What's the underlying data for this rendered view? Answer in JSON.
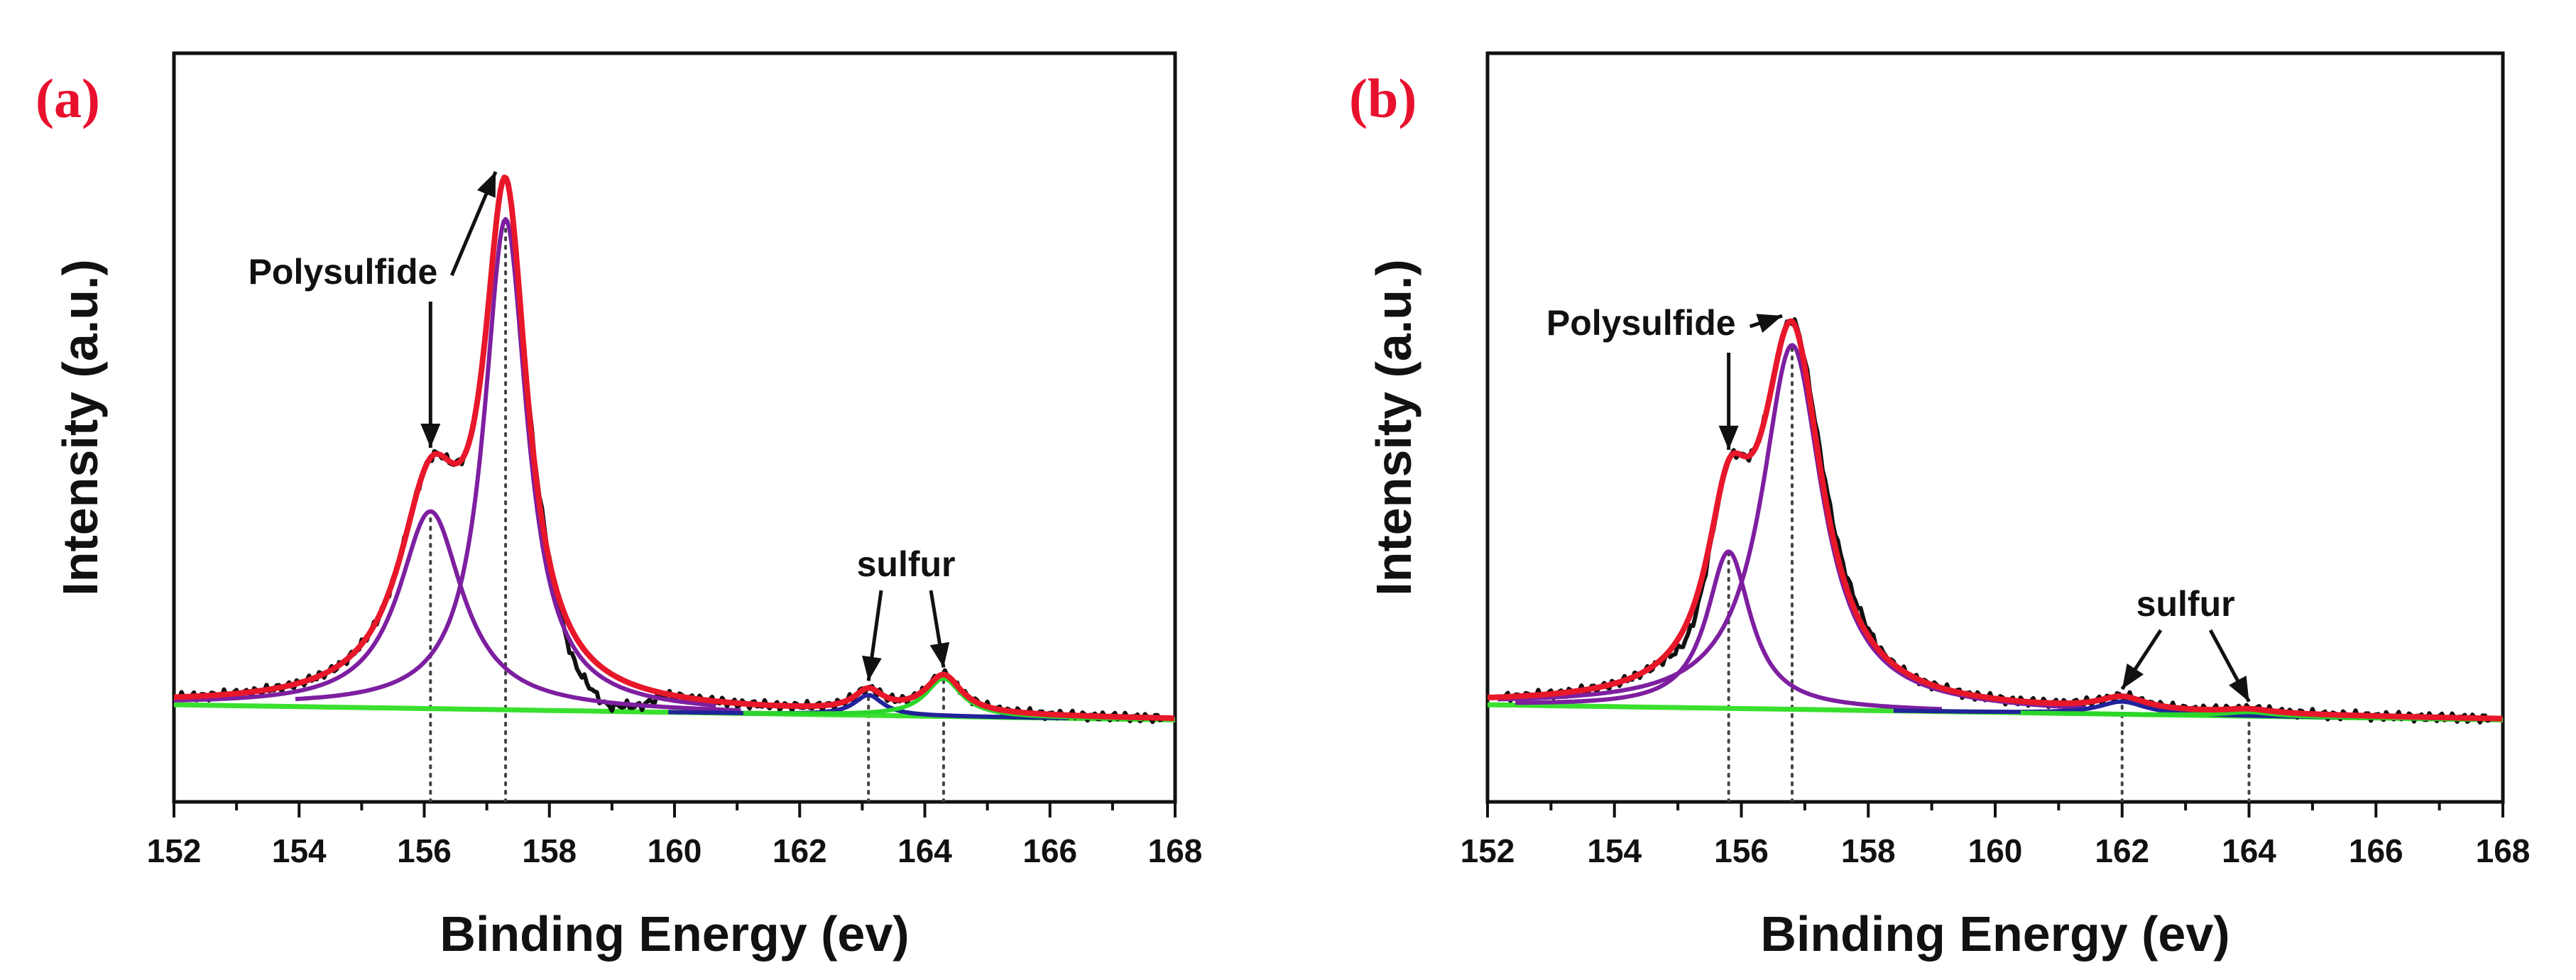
{
  "chart_data": [
    {
      "type": "line",
      "panel_label": "(a)",
      "xlabel": "Binding Energy (ev)",
      "ylabel": "Intensity (a.u.)",
      "xlim": [
        152,
        168
      ],
      "ylim": [
        -0.18,
        1.3
      ],
      "x_ticks": [
        152,
        154,
        156,
        158,
        160,
        162,
        164,
        166,
        168
      ],
      "y_ticks": [],
      "grid": false,
      "colors": {
        "panel_label": "#e8112d",
        "raw": "#111111",
        "fit": "#e8172a",
        "polysulfide": "#7d1fa0",
        "sulfur_a": "#22239a",
        "sulfur_b": "#2bd62b",
        "background": "#39e02e",
        "annotation": "#111111",
        "guide": "#444444"
      },
      "background_line": {
        "start": 0.012,
        "end": -0.018
      },
      "series": [
        {
          "name": "Polysulfide peak 1",
          "role": "polysulfide",
          "center": 156.1,
          "amplitude": 0.39,
          "width": 0.62
        },
        {
          "name": "Polysulfide peak 2",
          "role": "polysulfide",
          "center": 157.3,
          "amplitude": 0.97,
          "width": 0.42
        },
        {
          "name": "Sulfur peak 1",
          "role": "sulfur_a",
          "center": 163.1,
          "amplitude": 0.04,
          "width": 0.28
        },
        {
          "name": "Sulfur peak 2",
          "role": "sulfur_b",
          "center": 164.3,
          "amplitude": 0.075,
          "width": 0.35
        }
      ],
      "raw_offset": [
        {
          "x": 157.9,
          "dy": 0.02
        },
        {
          "x": 158.4,
          "dy": -0.05
        },
        {
          "x": 158.9,
          "dy": -0.06
        },
        {
          "x": 159.4,
          "dy": -0.035
        }
      ],
      "guide_lines": [
        156.1,
        157.3,
        163.1,
        164.3
      ],
      "annotations": [
        {
          "text": "Polysulfide",
          "target_x": 156.1,
          "anchor": "above-left"
        },
        {
          "text": "sulfur",
          "targets": [
            163.1,
            164.3
          ],
          "anchor": "above"
        }
      ]
    },
    {
      "type": "line",
      "panel_label": "(b)",
      "xlabel": "Binding Energy (ev)",
      "ylabel": "Intensity (a.u.)",
      "xlim": [
        152,
        168
      ],
      "ylim": [
        -0.18,
        1.3
      ],
      "x_ticks": [
        152,
        154,
        156,
        158,
        160,
        162,
        164,
        166,
        168
      ],
      "y_ticks": [],
      "grid": false,
      "colors": {
        "panel_label": "#e8112d",
        "raw": "#111111",
        "fit": "#e8172a",
        "polysulfide": "#7d1fa0",
        "sulfur_a": "#22239a",
        "sulfur_b": "#2bd62b",
        "background": "#39e02e",
        "annotation": "#111111",
        "guide": "#444444"
      },
      "background_line": {
        "start": 0.012,
        "end": -0.018
      },
      "series": [
        {
          "name": "Polysulfide peak 1",
          "role": "polysulfide",
          "center": 155.8,
          "amplitude": 0.31,
          "width": 0.42
        },
        {
          "name": "Polysulfide peak 2",
          "role": "polysulfide",
          "center": 156.8,
          "amplitude": 0.72,
          "width": 0.58
        },
        {
          "name": "Sulfur peak 1",
          "role": "sulfur_a",
          "center": 162.0,
          "amplitude": 0.025,
          "width": 0.45
        },
        {
          "name": "Sulfur peak 2",
          "role": "sulfur_b",
          "center": 164.0,
          "amplitude": 0.008,
          "width": 0.45
        }
      ],
      "raw_offset": [
        {
          "x": 155.2,
          "dy": -0.03
        },
        {
          "x": 157.3,
          "dy": 0.03
        },
        {
          "x": 157.8,
          "dy": 0.02
        }
      ],
      "guide_lines": [
        155.8,
        156.8,
        162.0,
        164.0
      ],
      "annotations": [
        {
          "text": "Polysulfide",
          "target_x": 155.8,
          "anchor": "above-left"
        },
        {
          "text": "sulfur",
          "targets": [
            162.0,
            164.0
          ],
          "anchor": "above"
        }
      ]
    }
  ]
}
